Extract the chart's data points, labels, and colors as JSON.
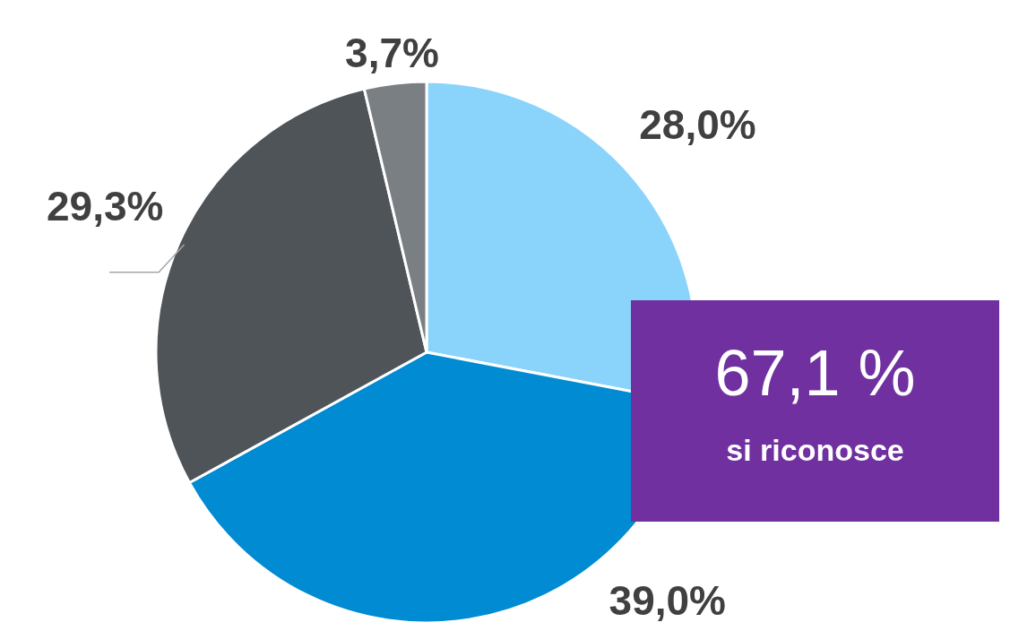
{
  "chart_data": {
    "type": "pie",
    "categories": [
      null,
      null,
      null,
      null
    ],
    "values": [
      28.0,
      39.0,
      29.3,
      3.7
    ],
    "colors": [
      "#8ad4fb",
      "#008bd2",
      "#4f5459",
      "#7a7f83"
    ],
    "value_labels": [
      "28,0%",
      "39,0%",
      "29,3%",
      "3,7%"
    ],
    "annotations": [
      "67,1 %",
      "si riconosce"
    ]
  }
}
